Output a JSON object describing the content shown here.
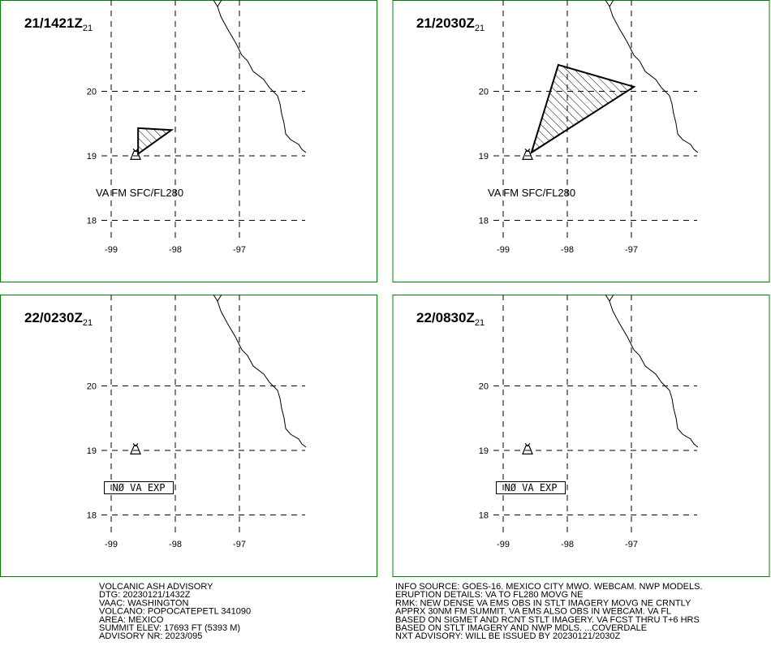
{
  "map": {
    "lat_ticks": [
      20,
      19,
      18
    ],
    "lon_ticks": [
      -99,
      -98,
      -97
    ],
    "volcano": [
      -98.62,
      19.02
    ],
    "panels": [
      {
        "time": "21/1421Z",
        "sub": "21",
        "label": "VA FM SFC/FL280",
        "polygon": [
          [
            -98.58,
            19.43
          ],
          [
            -98.06,
            19.4
          ],
          [
            -98.58,
            19.03
          ]
        ]
      },
      {
        "time": "21/2030Z",
        "sub": "21",
        "label": "VA FM SFC/FL280",
        "polygon": [
          [
            -98.14,
            20.41
          ],
          [
            -96.96,
            20.07
          ],
          [
            -98.56,
            19.05
          ]
        ]
      },
      {
        "time": "22/0230Z",
        "sub": "21",
        "label": "NØ VA EXP"
      },
      {
        "time": "22/0830Z",
        "sub": "21",
        "label": "NØ VA EXP"
      }
    ]
  },
  "footer": {
    "left": [
      "VOLCANIC ASH ADVISORY",
      "DTG: 20230121/1432Z",
      "VAAC: WASHINGTON",
      "VOLCANO: POPOCATEPETL 341090",
      "AREA: MEXICO",
      "SUMMIT ELEV: 17693 FT (5393 M)",
      "ADVISORY NR: 2023/095"
    ],
    "right": [
      "INFO SOURCE: GOES-16. MEXICO CITY MWO. WEBCAM. NWP MODELS.",
      "ERUPTION DETAILS: VA TO FL280 MOVG NE",
      "RMK: NEW DENSE VA EMS OBS IN STLT IMAGERY MOVG NE CRNTLY",
      "APPRX 30NM FM SUMMIT. VA EMS ALSO OBS IN WEBCAM. VA FL",
      "BASED ON SIGMET AND RCNT STLT IMAGERY. VA FCST THRU T+6 HRS",
      "BASED ON STLT IMAGERY AND NWP MDLS. ...COVERDALE",
      "NXT ADVISORY: WILL BE ISSUED BY 20230121/2030Z"
    ]
  }
}
